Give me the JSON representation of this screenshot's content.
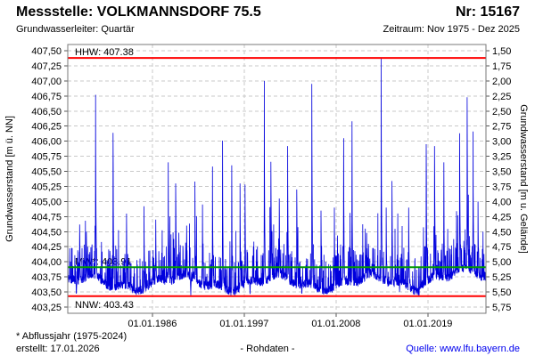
{
  "header": {
    "title": "Messstelle: VOLKMANNSDORF 75.5",
    "number": "Nr: 15167",
    "aquifer": "Grundwasserleiter: Quartär",
    "period": "Zeitraum: Nov 1975 - Dez 2025"
  },
  "footer": {
    "footnote": "* Abflussjahr (1975-2024)",
    "created": "erstellt: 17.01.2026",
    "center_label": "- Rohdaten -",
    "source": "Quelle: www.lfu.bayern.de"
  },
  "chart_data": {
    "type": "line",
    "series_name": "Grundwasserstand Rohdaten",
    "series_color": "#0000dd",
    "grid": true,
    "x_range": {
      "start": 1975.87,
      "end": 2025.95
    },
    "x_ticks": [
      {
        "label": "01.01.1986",
        "year": 1986.0
      },
      {
        "label": "01.01.1997",
        "year": 1997.0
      },
      {
        "label": "01.01.2008",
        "year": 2008.0
      },
      {
        "label": "01.01.2019",
        "year": 2019.0
      }
    ],
    "y_left": {
      "title": "Grundwasserstand [m ü. NN]",
      "min": 403.25,
      "max": 407.5,
      "step": 0.25,
      "decimal_separator": ","
    },
    "y_right": {
      "title": "Grundwasserstand [m u. Gelände]",
      "top": 1.5,
      "bottom": 5.75,
      "step": 0.25,
      "inverted": true
    },
    "ref_lines": [
      {
        "name": "HHW",
        "label": "HHW: 407.38",
        "value": 407.38,
        "color": "#ff0000",
        "label_position": "above"
      },
      {
        "name": "MW",
        "label": "MW*: 403.91",
        "value": 403.91,
        "color": "#009900",
        "label_position": "above"
      },
      {
        "name": "NNW",
        "label": "NNW: 403.43",
        "value": 403.43,
        "color": "#ff0000",
        "label_position": "below"
      }
    ],
    "baseline_band": [
      403.45,
      404.6
    ],
    "peaks": [
      [
        1977.3,
        404.62
      ],
      [
        1978.1,
        404.5
      ],
      [
        1979.2,
        406.77
      ],
      [
        1981.3,
        406.14
      ],
      [
        1982.9,
        404.8
      ],
      [
        1985.0,
        404.92
      ],
      [
        1986.4,
        404.7
      ],
      [
        1987.9,
        405.65
      ],
      [
        1988.8,
        405.3
      ],
      [
        1990.1,
        404.6
      ],
      [
        1991.1,
        405.33
      ],
      [
        1992.0,
        404.95
      ],
      [
        1993.2,
        405.58
      ],
      [
        1994.4,
        406.01
      ],
      [
        1995.5,
        405.6
      ],
      [
        1996.5,
        405.3
      ],
      [
        1997.1,
        405.28
      ],
      [
        1999.4,
        407.0
      ],
      [
        2000.2,
        405.66
      ],
      [
        2001.2,
        405.05
      ],
      [
        2002.2,
        405.92
      ],
      [
        2003.3,
        405.2
      ],
      [
        2005.1,
        406.95
      ],
      [
        2006.2,
        404.85
      ],
      [
        2007.8,
        404.9
      ],
      [
        2008.9,
        406.05
      ],
      [
        2009.9,
        406.33
      ],
      [
        2011.5,
        404.55
      ],
      [
        2013.4,
        407.38
      ],
      [
        2014.0,
        404.9
      ],
      [
        2014.7,
        405.34
      ],
      [
        2016.7,
        404.9
      ],
      [
        2018.8,
        405.95
      ],
      [
        2019.8,
        405.92
      ],
      [
        2020.9,
        405.65
      ],
      [
        2022.8,
        406.13
      ],
      [
        2023.7,
        406.73
      ],
      [
        2024.4,
        406.16
      ],
      [
        2025.0,
        405.0
      ]
    ],
    "dips": [
      [
        1976.9,
        403.43
      ],
      [
        1984.0,
        403.45
      ],
      [
        1990.6,
        403.44
      ],
      [
        1997.7,
        403.45
      ],
      [
        2003.9,
        403.43
      ],
      [
        2015.6,
        403.5
      ]
    ],
    "extremes": {
      "max": 407.38,
      "min": 403.43,
      "mean": 403.91
    }
  }
}
